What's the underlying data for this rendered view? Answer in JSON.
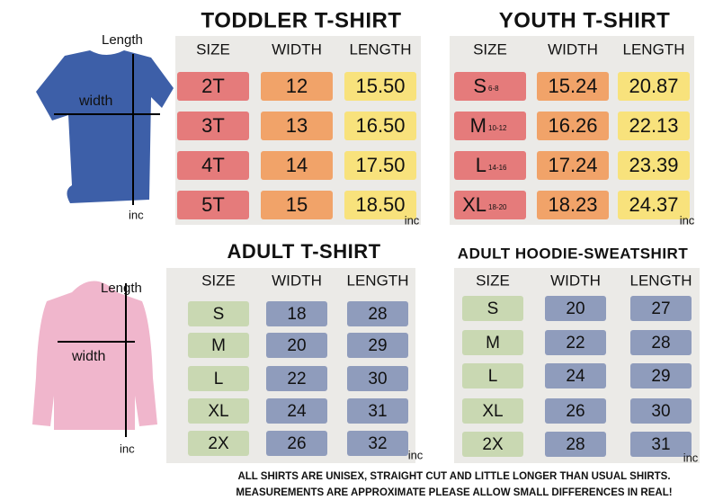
{
  "shirt_labels": {
    "tee": {
      "length": "Length",
      "width": "width",
      "unit": "inc"
    },
    "hoodie": {
      "length": "Length",
      "width": "width",
      "unit": "inc"
    }
  },
  "tables": [
    {
      "title": "TODDLER T-SHIRT",
      "headers": [
        "SIZE",
        "WIDTH",
        "LENGTH"
      ],
      "rows": [
        [
          "2T",
          "12",
          "15.50"
        ],
        [
          "3T",
          "13",
          "16.50"
        ],
        [
          "4T",
          "14",
          "17.50"
        ],
        [
          "5T",
          "15",
          "18.50"
        ]
      ],
      "unit": "inc"
    },
    {
      "title": "YOUTH  T-SHIRT",
      "headers": [
        "SIZE",
        "WIDTH",
        "LENGTH"
      ],
      "rows": [
        [
          "S",
          "15.24",
          "20.87"
        ],
        [
          "M",
          "16.26",
          "22.13"
        ],
        [
          "L",
          "17.24",
          "23.39"
        ],
        [
          "XL",
          "18.23",
          "24.37"
        ]
      ],
      "ages": [
        "6-8",
        "10-12",
        "14-16",
        "18-20"
      ],
      "unit": "inc"
    },
    {
      "title": "ADULT  T-SHIRT",
      "headers": [
        "SIZE",
        "WIDTH",
        "LENGTH"
      ],
      "rows": [
        [
          "S",
          "18",
          "28"
        ],
        [
          "M",
          "20",
          "29"
        ],
        [
          "L",
          "22",
          "30"
        ],
        [
          "XL",
          "24",
          "31"
        ],
        [
          "2X",
          "26",
          "32"
        ]
      ],
      "unit": "inc"
    },
    {
      "title": "ADULT HOODIE-SWEATSHIRT",
      "headers": [
        "SIZE",
        "WIDTH",
        "LENGTH"
      ],
      "rows": [
        [
          "S",
          "20",
          "27"
        ],
        [
          "M",
          "22",
          "28"
        ],
        [
          "L",
          "24",
          "29"
        ],
        [
          "XL",
          "26",
          "30"
        ],
        [
          "2X",
          "28",
          "31"
        ]
      ],
      "unit": "inc"
    }
  ],
  "footer": [
    "ALL SHIRTS ARE UNISEX, STRAIGHT CUT AND LITTLE LONGER THAN USUAL SHIRTS.",
    "MEASUREMENTS ARE APPROXIMATE PLEASE ALLOW SMALL DIFFERENCES IN REAL!"
  ]
}
